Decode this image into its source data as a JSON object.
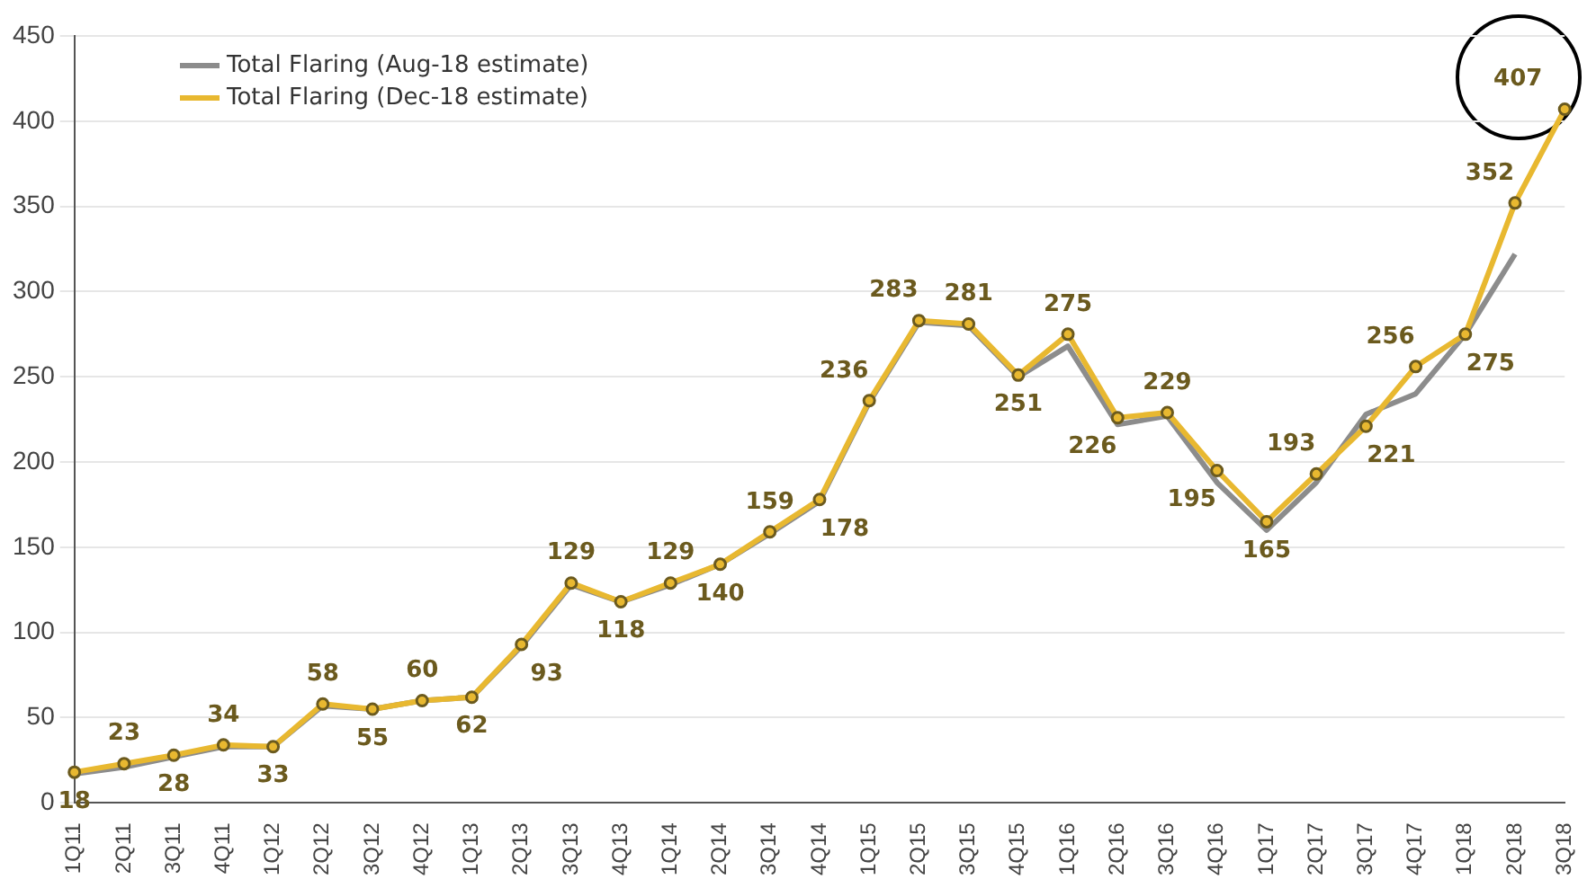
{
  "chart_data": {
    "type": "line",
    "categories": [
      "1Q11",
      "2Q11",
      "3Q11",
      "4Q11",
      "1Q12",
      "2Q12",
      "3Q12",
      "4Q12",
      "1Q13",
      "2Q13",
      "3Q13",
      "4Q13",
      "1Q14",
      "2Q14",
      "3Q14",
      "4Q14",
      "1Q15",
      "2Q15",
      "3Q15",
      "4Q15",
      "1Q16",
      "2Q16",
      "3Q16",
      "4Q16",
      "1Q17",
      "2Q17",
      "3Q17",
      "4Q17",
      "1Q18",
      "2Q18",
      "3Q18"
    ],
    "series": [
      {
        "name": "Total Flaring (Aug-18 estimate)",
        "color": "#8c8c8c",
        "marker": "none",
        "values": [
          17,
          21,
          27,
          33,
          33,
          57,
          55,
          60,
          62,
          92,
          128,
          118,
          128,
          140,
          158,
          177,
          235,
          282,
          280,
          250,
          268,
          222,
          227,
          188,
          160,
          188,
          228,
          240,
          275,
          322,
          null
        ]
      },
      {
        "name": "Total Flaring (Dec-18 estimate)",
        "color": "#e8b830",
        "marker": "circle",
        "values": [
          18,
          23,
          28,
          34,
          33,
          58,
          55,
          60,
          62,
          93,
          129,
          118,
          129,
          140,
          159,
          178,
          236,
          283,
          281,
          251,
          275,
          226,
          229,
          195,
          165,
          193,
          221,
          256,
          275,
          352,
          407
        ],
        "value_labels": [
          "18",
          "23",
          "28",
          "34",
          "33",
          "58",
          "55",
          "60",
          "62",
          "93",
          "129",
          "118",
          "129",
          "140",
          "159",
          "178",
          "236",
          "283",
          "281",
          "251",
          "275",
          "226",
          "229",
          "195",
          "165",
          "193",
          "221",
          "256",
          "275",
          "352",
          "407"
        ]
      }
    ],
    "ylim": [
      0,
      450
    ],
    "yticks": [
      0,
      50,
      100,
      150,
      200,
      250,
      300,
      350,
      400,
      450
    ],
    "grid": "y",
    "legend": "top left",
    "line_style": "solid"
  }
}
